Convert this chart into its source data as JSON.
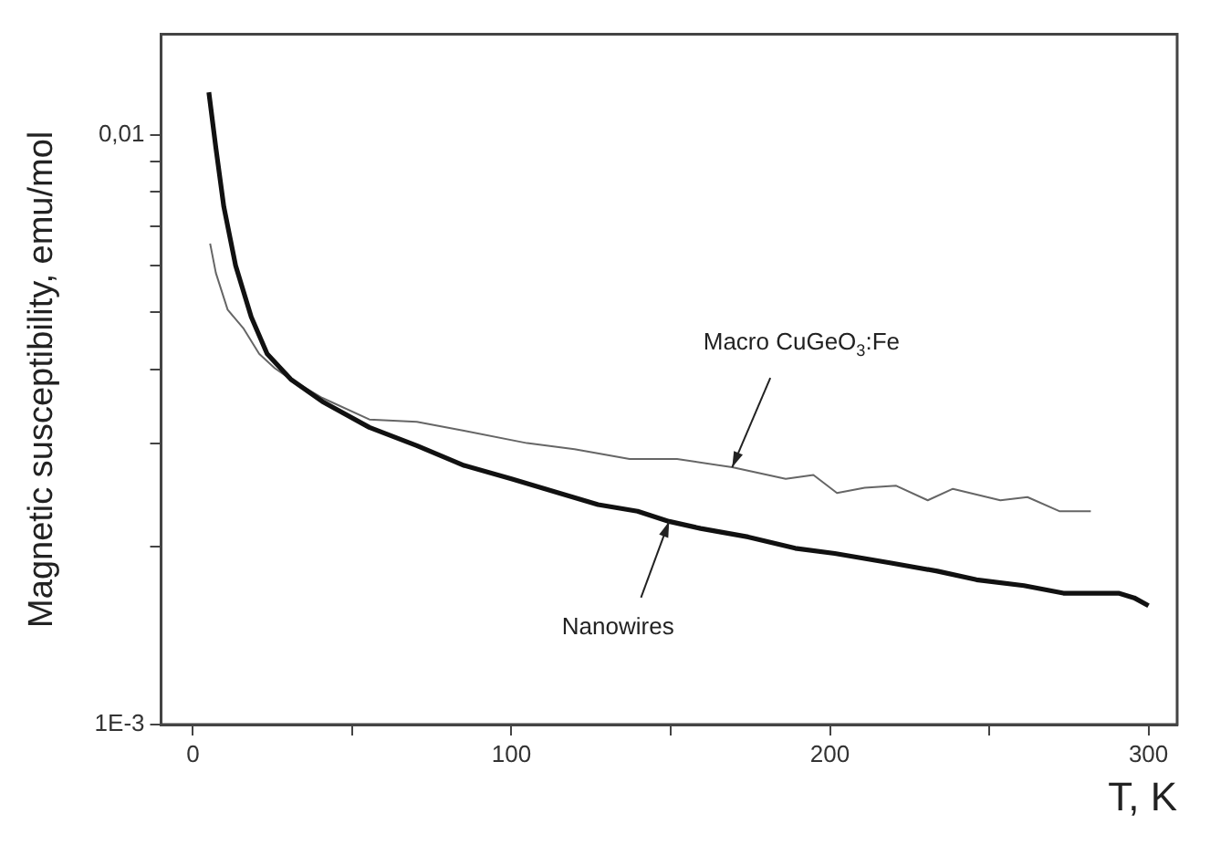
{
  "chart_data": {
    "type": "line",
    "xlabel": "T, K",
    "ylabel": "Magnetic susceptibility, emu/mol",
    "log": "y",
    "grid": false,
    "legend": false,
    "marker": "none",
    "line_style": "solid",
    "xlim": [
      -10,
      309
    ],
    "xticks": [
      0,
      {
        "value": 50,
        "label": null
      },
      100,
      {
        "value": 150,
        "label": null
      },
      200,
      {
        "value": 250,
        "label": null
      },
      300
    ],
    "ylim": [
      0.001,
      0.0148
    ],
    "yticks": [
      {
        "value": 0.001,
        "label": "1E-3"
      },
      {
        "value": 0.002,
        "label": null
      },
      {
        "value": 0.003,
        "label": null
      },
      {
        "value": 0.004,
        "label": null
      },
      {
        "value": 0.005,
        "label": null
      },
      {
        "value": 0.006,
        "label": null
      },
      {
        "value": 0.007,
        "label": null
      },
      {
        "value": 0.008,
        "label": null
      },
      {
        "value": 0.009,
        "label": null
      },
      {
        "value": 0.01,
        "label": "0,01"
      }
    ],
    "series": [
      {
        "color": "#111111",
        "x": [
          5,
          7.2,
          9.7,
          13.4,
          18.3,
          23.3,
          30.7,
          40.6,
          55.4,
          70.3,
          85.1,
          100,
          114.9,
          127.2,
          139.6,
          149.5,
          159.4,
          174.3,
          189.1,
          201.5,
          218.8,
          233.7,
          246,
          260.9,
          273.3,
          283.2,
          290.6,
          295.5,
          300
        ],
        "values": [
          0.0118,
          0.0095,
          0.00755,
          0.006,
          0.00491,
          0.00425,
          0.00385,
          0.00353,
          0.00319,
          0.00297,
          0.00275,
          0.00261,
          0.00247,
          0.00236,
          0.0023,
          0.00221,
          0.00215,
          0.00208,
          0.00199,
          0.00195,
          0.00188,
          0.00182,
          0.00176,
          0.00172,
          0.00167,
          0.00167,
          0.00167,
          0.00164,
          0.00159
        ]
      },
      {
        "color": "#666666",
        "x": [
          5.4,
          7.2,
          10.9,
          15.8,
          20.8,
          25.7,
          30.7,
          40.6,
          55.4,
          70.3,
          85.1,
          104.9,
          119.8,
          137.1,
          152,
          169.3,
          186.1,
          194.8,
          202.2,
          210.9,
          220.8,
          230.7,
          238.6,
          253.5,
          262,
          272,
          281.9
        ],
        "values": [
          0.00654,
          0.00583,
          0.00505,
          0.0047,
          0.00425,
          0.00402,
          0.00385,
          0.00358,
          0.00329,
          0.00326,
          0.00315,
          0.003,
          0.00293,
          0.00282,
          0.00282,
          0.00273,
          0.00261,
          0.00265,
          0.00247,
          0.00252,
          0.00254,
          0.0024,
          0.00251,
          0.0024,
          0.00243,
          0.0023,
          0.0023
        ]
      }
    ],
    "annotations": [
      {
        "text": "Macro CuGeO$_{3}$:Fe",
        "x": 169.3,
        "y": 0.00273
      },
      {
        "text": "Nanowires",
        "x": 149.5,
        "y": 0.00221
      }
    ]
  }
}
